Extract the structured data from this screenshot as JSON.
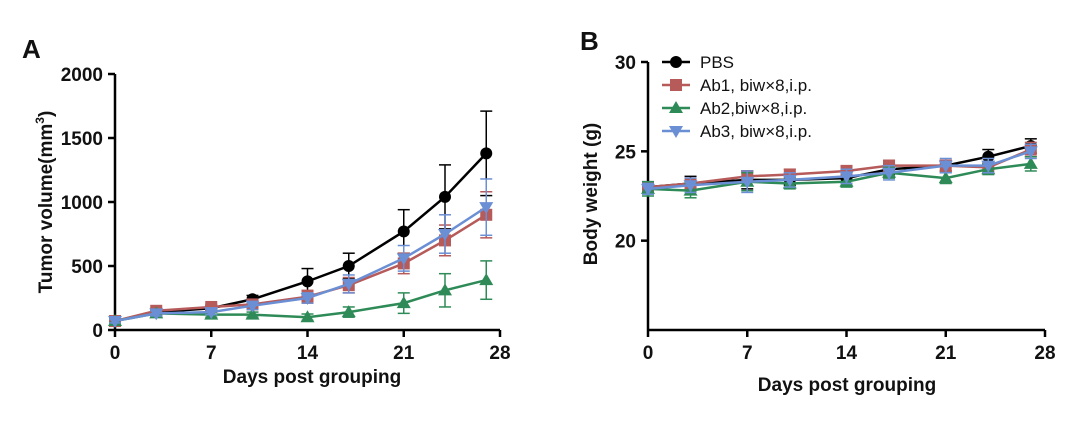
{
  "chart_data": [
    {
      "panel_label": "A",
      "type": "line",
      "xlabel": "Days post grouping",
      "ylabel_main": "Tumor volume(mm",
      "ylabel_sup": "3",
      "ylabel_close": ")",
      "xlim": [
        0,
        28
      ],
      "ylim": [
        0,
        2000
      ],
      "xticks": [
        0,
        7,
        14,
        21,
        28
      ],
      "yticks": [
        0,
        500,
        1000,
        1500,
        2000
      ],
      "grid": false,
      "series": [
        {
          "key": "PBS",
          "color": "#000000",
          "marker": "circle",
          "x": [
            0,
            3,
            7,
            10,
            14,
            17,
            21,
            24,
            27
          ],
          "y": [
            70,
            140,
            170,
            240,
            380,
            500,
            770,
            1040,
            1380
          ],
          "err": [
            15,
            20,
            20,
            30,
            100,
            100,
            170,
            250,
            330
          ]
        },
        {
          "key": "Ab1",
          "color": "#b65a5a",
          "marker": "square",
          "x": [
            0,
            3,
            7,
            10,
            14,
            17,
            21,
            24,
            27
          ],
          "y": [
            70,
            150,
            180,
            200,
            260,
            350,
            520,
            700,
            900
          ],
          "err": [
            15,
            20,
            20,
            25,
            50,
            60,
            80,
            120,
            180
          ]
        },
        {
          "key": "Ab2",
          "color": "#2e8b57",
          "marker": "triangle-up",
          "x": [
            0,
            3,
            7,
            10,
            14,
            17,
            21,
            24,
            27
          ],
          "y": [
            70,
            130,
            120,
            120,
            100,
            140,
            210,
            310,
            390
          ],
          "err": [
            15,
            20,
            20,
            20,
            25,
            40,
            80,
            130,
            150
          ]
        },
        {
          "key": "Ab3",
          "color": "#6b8fd4",
          "marker": "triangle-down",
          "x": [
            0,
            3,
            7,
            10,
            14,
            17,
            21,
            24,
            27
          ],
          "y": [
            70,
            130,
            140,
            190,
            250,
            360,
            560,
            750,
            960
          ],
          "err": [
            15,
            20,
            20,
            30,
            40,
            70,
            100,
            150,
            220
          ]
        }
      ]
    },
    {
      "panel_label": "B",
      "type": "line",
      "xlabel": "Days post grouping",
      "ylabel": "Body weight (g)",
      "xlim": [
        0,
        28
      ],
      "ylim": [
        15,
        30
      ],
      "xticks": [
        0,
        7,
        14,
        21,
        28
      ],
      "yticks": [
        20,
        25,
        30
      ],
      "grid": false,
      "legend_position": "top-left",
      "series": [
        {
          "key": "PBS",
          "name": "PBS",
          "color": "#000000",
          "marker": "circle",
          "x": [
            0,
            3,
            7,
            10,
            14,
            17,
            21,
            24,
            27
          ],
          "y": [
            23.0,
            23.2,
            23.4,
            23.4,
            23.5,
            24.0,
            24.2,
            24.7,
            25.3
          ],
          "err": [
            0.3,
            0.4,
            0.5,
            0.3,
            0.3,
            0.3,
            0.3,
            0.4,
            0.4
          ]
        },
        {
          "key": "Ab1",
          "name": "Ab1, biw×8,i.p.",
          "color": "#b65a5a",
          "marker": "square",
          "x": [
            0,
            3,
            7,
            10,
            14,
            17,
            21,
            24,
            27
          ],
          "y": [
            23.0,
            23.2,
            23.6,
            23.7,
            23.9,
            24.2,
            24.2,
            24.1,
            25.1
          ],
          "err": [
            0.3,
            0.3,
            0.3,
            0.3,
            0.3,
            0.3,
            0.3,
            0.3,
            0.4
          ]
        },
        {
          "key": "Ab2",
          "name": "Ab2,biw×8,i.p.",
          "color": "#2e8b57",
          "marker": "triangle-up",
          "x": [
            0,
            3,
            7,
            10,
            14,
            17,
            21,
            24,
            27
          ],
          "y": [
            22.9,
            22.8,
            23.3,
            23.2,
            23.3,
            23.8,
            23.5,
            24.0,
            24.3
          ],
          "err": [
            0.4,
            0.4,
            0.5,
            0.3,
            0.3,
            0.3,
            0.3,
            0.3,
            0.4
          ]
        },
        {
          "key": "Ab3",
          "name": "Ab3, biw×8,i.p.",
          "color": "#6b8fd4",
          "marker": "triangle-down",
          "x": [
            0,
            3,
            7,
            10,
            14,
            17,
            21,
            24,
            27
          ],
          "y": [
            22.9,
            23.1,
            23.3,
            23.4,
            23.6,
            23.8,
            24.2,
            24.2,
            25.0
          ],
          "err": [
            0.3,
            0.4,
            0.6,
            0.4,
            0.4,
            0.4,
            0.4,
            0.4,
            0.4
          ]
        }
      ]
    }
  ]
}
